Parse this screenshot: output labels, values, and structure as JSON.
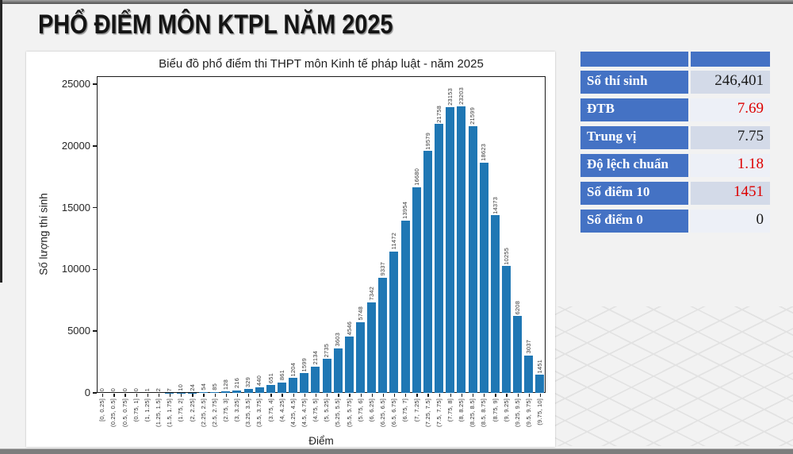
{
  "slide": {
    "title": "PHỔ ĐIỂM MÔN KTPL NĂM 2025"
  },
  "chart_data": {
    "type": "bar",
    "title": "Biểu đồ phổ điểm thi THPT môn Kinh tế pháp luật - năm 2025",
    "xlabel": "Điểm",
    "ylabel": "Số lượng thí sinh",
    "ylim": [
      0,
      25000
    ],
    "yticks": [
      0,
      5000,
      10000,
      15000,
      20000,
      25000
    ],
    "grid": false,
    "legend": "none",
    "bar_color": "#1f77b4",
    "categories": [
      "[0, 0.25]",
      "(0.25, 0.5]",
      "(0.5, 0.75]",
      "(0.75, 1]",
      "(1, 1.25]",
      "(1.25, 1.5]",
      "(1.5, 1.75]",
      "(1.75, 2]",
      "(2, 2.25]",
      "(2.25, 2.5]",
      "(2.5, 2.75]",
      "(2.75, 3]",
      "(3, 3.25]",
      "(3.25, 3.5]",
      "(3.5, 3.75]",
      "(3.75, 4]",
      "(4, 4.25]",
      "(4.25, 4.5]",
      "(4.5, 4.75]",
      "(4.75, 5]",
      "(5, 5.25]",
      "(5.25, 5.5]",
      "(5.5, 5.75]",
      "(5.75, 6]",
      "(6, 6.25]",
      "(6.25, 6.5]",
      "(6.5, 6.75]",
      "(6.75, 7]",
      "(7, 7.25]",
      "(7.25, 7.5]",
      "(7.5, 7.75]",
      "(7.75, 8]",
      "(8, 8.25]",
      "(8.25, 8.5]",
      "(8.5, 8.75]",
      "(8.75, 9]",
      "(9, 9.25]",
      "(9.25, 9.5]",
      "(9.5, 9.75]",
      "(9.75, 10]"
    ],
    "values": [
      0,
      0,
      0,
      0,
      1,
      2,
      7,
      10,
      24,
      54,
      85,
      128,
      216,
      329,
      440,
      651,
      861,
      1204,
      1599,
      2134,
      2735,
      3603,
      4546,
      5748,
      7342,
      9337,
      11472,
      13954,
      16680,
      19579,
      21758,
      23153,
      23203,
      21599,
      18623,
      14373,
      10255,
      6208,
      3037,
      1451
    ]
  },
  "stats_table": {
    "header_color": "#4472C4",
    "value_bg_odd": "#D3DAE8",
    "value_bg_even": "#EDF0F7",
    "rows": [
      {
        "label": "Số thí sinh",
        "value": "246,401",
        "value_color": "#1a1a1a"
      },
      {
        "label": "ĐTB",
        "value": "7.69",
        "value_color": "#DD0000"
      },
      {
        "label": "Trung vị",
        "value": "7.75",
        "value_color": "#1a1a1a"
      },
      {
        "label": "Độ lệch chuẩn",
        "value": "1.18",
        "value_color": "#DD0000"
      },
      {
        "label": "Số điểm 10",
        "value": "1451",
        "value_color": "#DD0000"
      },
      {
        "label": "Số điểm 0",
        "value": "0",
        "value_color": "#1a1a1a"
      }
    ]
  }
}
